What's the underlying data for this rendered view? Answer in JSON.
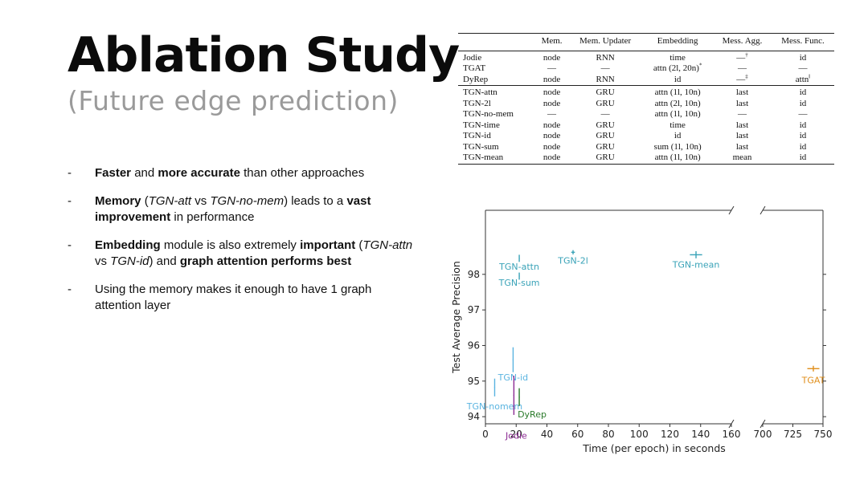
{
  "slide": {
    "title": "Ablation Study",
    "subtitle": "(Future edge prediction)"
  },
  "bullets": [
    [
      {
        "t": "Faster",
        "b": true
      },
      {
        "t": " and "
      },
      {
        "t": "more accurate",
        "b": true
      },
      {
        "t": " than other approaches"
      }
    ],
    [
      {
        "t": "Memory",
        "b": true
      },
      {
        "t": " ("
      },
      {
        "t": "TGN-att",
        "i": true
      },
      {
        "t": " vs "
      },
      {
        "t": "TGN-no-mem",
        "i": true
      },
      {
        "t": ") leads to a "
      },
      {
        "t": "vast improvement",
        "b": true
      },
      {
        "t": " in performance"
      }
    ],
    [
      {
        "t": "Embedding",
        "b": true
      },
      {
        "t": " module is also extremely "
      },
      {
        "t": "important",
        "b": true
      },
      {
        "t": " ("
      },
      {
        "t": "TGN-attn",
        "i": true
      },
      {
        "t": " vs "
      },
      {
        "t": "TGN-id",
        "i": true
      },
      {
        "t": ") and "
      },
      {
        "t": "graph attention performs best",
        "b": true
      }
    ],
    [
      {
        "t": "Using the memory makes it enough to have 1 graph attention layer"
      }
    ]
  ],
  "table": {
    "headers": [
      "",
      "Mem.",
      "Mem. Updater",
      "Embedding",
      "Mess. Agg.",
      "Mess. Func."
    ],
    "groups": [
      [
        [
          "Jodie",
          "node",
          "RNN",
          "time",
          "—†",
          "id"
        ],
        [
          "TGAT",
          "—",
          "—",
          "attn (2l, 20n)*",
          "—",
          "—"
        ],
        [
          "DyRep",
          "node",
          "RNN",
          "id",
          "—‡",
          "attn‖"
        ]
      ],
      [
        [
          "TGN-attn",
          "node",
          "GRU",
          "attn (1l, 10n)",
          "last",
          "id"
        ],
        [
          "TGN-2l",
          "node",
          "GRU",
          "attn (2l, 10n)",
          "last",
          "id"
        ],
        [
          "TGN-no-mem",
          "—",
          "—",
          "attn (1l, 10n)",
          "—",
          "—"
        ],
        [
          "TGN-time",
          "node",
          "GRU",
          "time",
          "last",
          "id"
        ],
        [
          "TGN-id",
          "node",
          "GRU",
          "id",
          "last",
          "id"
        ],
        [
          "TGN-sum",
          "node",
          "GRU",
          "sum (1l, 10n)",
          "last",
          "id"
        ],
        [
          "TGN-mean",
          "node",
          "GRU",
          "attn (1l, 10n)",
          "mean",
          "id"
        ]
      ]
    ]
  },
  "chart_data": {
    "type": "scatter",
    "xlabel": "Time (per epoch) in seconds",
    "ylabel": "Test Average Precision",
    "x_segments": [
      {
        "range": [
          0,
          160
        ],
        "ticks": [
          0,
          20,
          40,
          60,
          80,
          100,
          120,
          140,
          160
        ]
      },
      {
        "range": [
          700,
          750
        ],
        "ticks": [
          700,
          725,
          750
        ]
      }
    ],
    "ylim": [
      93.8,
      99.8
    ],
    "y_ticks": [
      94,
      95,
      96,
      97,
      98
    ],
    "grid": false,
    "points": [
      {
        "name": "TGN-attn",
        "x": 22,
        "y": 98.45,
        "xerr": 0.3,
        "yerr": 0.1,
        "color": "#3aa3b8",
        "label_dx": 0,
        "label_dy": 14,
        "anchor": "middle"
      },
      {
        "name": "TGN-2l",
        "x": 57,
        "y": 98.62,
        "xerr": 1.2,
        "yerr": 0.06,
        "color": "#3aa3b8",
        "label_dx": 0,
        "label_dy": 14,
        "anchor": "middle"
      },
      {
        "name": "TGN-mean",
        "x": 137,
        "y": 98.55,
        "xerr": 4,
        "yerr": 0.1,
        "color": "#3aa3b8",
        "label_dx": 0,
        "label_dy": 16,
        "anchor": "middle"
      },
      {
        "name": "TGN-sum",
        "x": 22,
        "y": 97.95,
        "xerr": 0.3,
        "yerr": 0.1,
        "color": "#3aa3b8",
        "label_dx": 0,
        "label_dy": 12,
        "anchor": "middle"
      },
      {
        "name": "TGN-id",
        "x": 18,
        "y": 95.6,
        "xerr": 0.3,
        "yerr": 0.35,
        "color": "#5ab4e0",
        "label_dx": 0,
        "label_dy": 26,
        "anchor": "middle"
      },
      {
        "name": "TGN-nomem",
        "x": 6,
        "y": 94.82,
        "xerr": 0.3,
        "yerr": 0.25,
        "color": "#5ab4e0",
        "label_dx": 0,
        "label_dy": 27,
        "anchor": "middle"
      },
      {
        "name": "DyRep",
        "x": 22,
        "y": 94.55,
        "xerr": 0.3,
        "yerr": 0.25,
        "color": "#2a7a2a",
        "label_dx": -2,
        "label_dy": 25,
        "anchor": "start"
      },
      {
        "name": "Jodie",
        "x": 18.5,
        "y": 94.6,
        "xerr": 0.3,
        "yerr": 0.55,
        "color": "#8b2a92",
        "label_dx": 3,
        "label_dy": 54,
        "anchor": "middle"
      },
      {
        "name": "TGAT",
        "x": 742,
        "y": 95.35,
        "xerr": 5,
        "yerr": 0.08,
        "color": "#e08e1a",
        "label_dx": 0,
        "label_dy": 18,
        "anchor": "middle"
      }
    ]
  }
}
